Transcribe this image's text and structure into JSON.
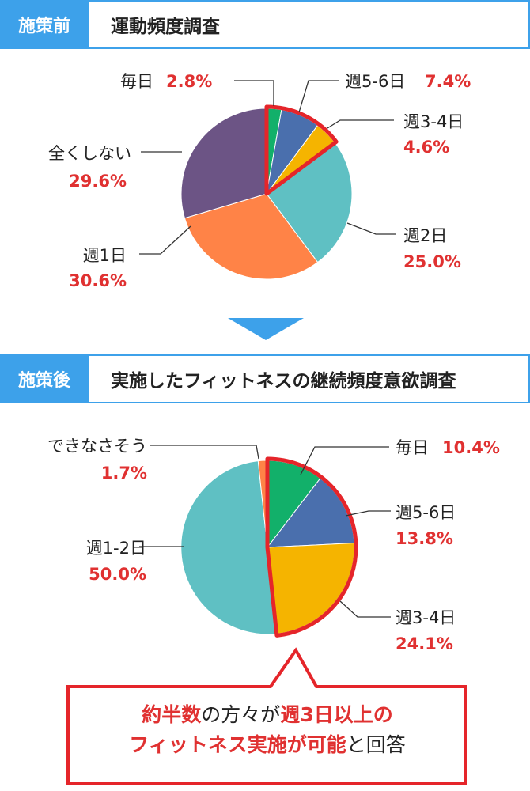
{
  "before": {
    "tag": "施策前",
    "title": "運動頻度調査"
  },
  "after": {
    "tag": "施策後",
    "title": "実施したフィットネスの継続頻度意欲調査"
  },
  "chart_data": [
    {
      "type": "pie",
      "start": "12 o'clock, clockwise",
      "slices": [
        {
          "label": "毎日",
          "value": 2.8,
          "display": "2.8%",
          "color": "#12b06a",
          "highlighted": true
        },
        {
          "label": "週5-6日",
          "value": 7.4,
          "display": "7.4%",
          "color": "#4a6fad",
          "highlighted": true
        },
        {
          "label": "週3-4日",
          "value": 4.6,
          "display": "4.6%",
          "color": "#f5b400",
          "highlighted": true
        },
        {
          "label": "週2日",
          "value": 25.0,
          "display": "25.0%",
          "color": "#5fc0c3",
          "highlighted": false
        },
        {
          "label": "週1日",
          "value": 30.6,
          "display": "30.6%",
          "color": "#ff8347",
          "highlighted": false
        },
        {
          "label": "全くしない",
          "value": 29.6,
          "display": "29.6%",
          "color": "#6c5485",
          "highlighted": false
        }
      ],
      "highlight_color": "#e5252a"
    },
    {
      "type": "pie",
      "start": "12 o'clock, clockwise",
      "slices": [
        {
          "label": "毎日",
          "value": 10.4,
          "display": "10.4%",
          "color": "#12b06a",
          "highlighted": true
        },
        {
          "label": "週5-6日",
          "value": 13.8,
          "display": "13.8%",
          "color": "#4a6fad",
          "highlighted": true
        },
        {
          "label": "週3-4日",
          "value": 24.1,
          "display": "24.1%",
          "color": "#f5b400",
          "highlighted": true
        },
        {
          "label": "週1-2日",
          "value": 50.0,
          "display": "50.0%",
          "color": "#5fc0c3",
          "highlighted": false
        },
        {
          "label": "できなさそう",
          "value": 1.7,
          "display": "1.7%",
          "color": "#ff8347",
          "highlighted": false
        }
      ],
      "highlight_color": "#e5252a"
    }
  ],
  "callout": {
    "line1": {
      "p1": "約半数",
      "p2": "の方々が",
      "p3": "週3日以上の"
    },
    "line2": {
      "p1": "フィットネス実施が可能",
      "p2": "と回答"
    }
  }
}
